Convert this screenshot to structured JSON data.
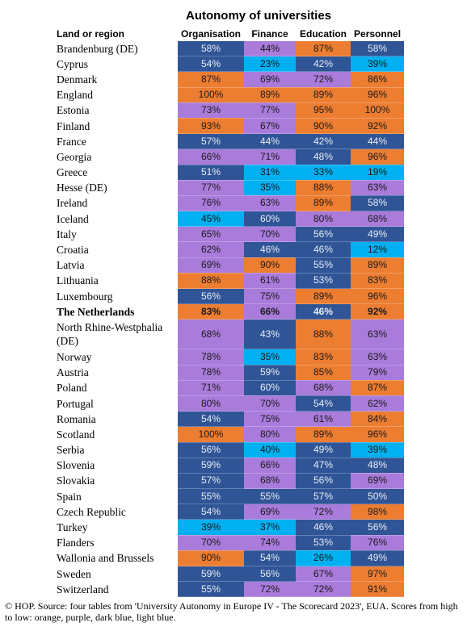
{
  "title": "Autonomy of universities",
  "table": {
    "header": [
      "Land or region",
      "Organisation",
      "Finance",
      "Education",
      "Personnel"
    ],
    "rows": [
      {
        "label": "Brandenburg (DE)",
        "cells": [
          "58%",
          "44%",
          "87%",
          "58%"
        ],
        "colors": [
          "#2f5597",
          "#a97bdb",
          "#ed7d31",
          "#2f5597"
        ]
      },
      {
        "label": "Cyprus",
        "cells": [
          "54%",
          "23%",
          "42%",
          "39%"
        ],
        "colors": [
          "#2f5597",
          "#00b0f0",
          "#2f5597",
          "#00b0f0"
        ]
      },
      {
        "label": "Denmark",
        "cells": [
          "87%",
          "69%",
          "72%",
          "86%"
        ],
        "colors": [
          "#ed7d31",
          "#a97bdb",
          "#a97bdb",
          "#ed7d31"
        ]
      },
      {
        "label": "England",
        "cells": [
          "100%",
          "89%",
          "89%",
          "96%"
        ],
        "colors": [
          "#ed7d31",
          "#ed7d31",
          "#ed7d31",
          "#ed7d31"
        ]
      },
      {
        "label": "Estonia",
        "cells": [
          "73%",
          "77%",
          "95%",
          "100%"
        ],
        "colors": [
          "#a97bdb",
          "#a97bdb",
          "#ed7d31",
          "#ed7d31"
        ]
      },
      {
        "label": "Finland",
        "cells": [
          "93%",
          "67%",
          "90%",
          "92%"
        ],
        "colors": [
          "#ed7d31",
          "#a97bdb",
          "#ed7d31",
          "#ed7d31"
        ]
      },
      {
        "label": "France",
        "cells": [
          "57%",
          "44%",
          "42%",
          "44%"
        ],
        "colors": [
          "#2f5597",
          "#2f5597",
          "#2f5597",
          "#2f5597"
        ]
      },
      {
        "label": "Georgia",
        "cells": [
          "66%",
          "71%",
          "48%",
          "96%"
        ],
        "colors": [
          "#a97bdb",
          "#a97bdb",
          "#2f5597",
          "#ed7d31"
        ]
      },
      {
        "label": "Greece",
        "cells": [
          "51%",
          "31%",
          "33%",
          "19%"
        ],
        "colors": [
          "#2f5597",
          "#00b0f0",
          "#00b0f0",
          "#00b0f0"
        ]
      },
      {
        "label": "Hesse (DE)",
        "cells": [
          "77%",
          "35%",
          "88%",
          "63%"
        ],
        "colors": [
          "#a97bdb",
          "#00b0f0",
          "#ed7d31",
          "#a97bdb"
        ]
      },
      {
        "label": "Ireland",
        "cells": [
          "76%",
          "63%",
          "89%",
          "58%"
        ],
        "colors": [
          "#a97bdb",
          "#a97bdb",
          "#ed7d31",
          "#2f5597"
        ]
      },
      {
        "label": "Iceland",
        "cells": [
          "45%",
          "60%",
          "80%",
          "68%"
        ],
        "colors": [
          "#00b0f0",
          "#2f5597",
          "#a97bdb",
          "#a97bdb"
        ]
      },
      {
        "label": "Italy",
        "cells": [
          "65%",
          "70%",
          "56%",
          "49%"
        ],
        "colors": [
          "#a97bdb",
          "#a97bdb",
          "#2f5597",
          "#2f5597"
        ]
      },
      {
        "label": "Croatia",
        "cells": [
          "62%",
          "46%",
          "46%",
          "12%"
        ],
        "colors": [
          "#a97bdb",
          "#2f5597",
          "#2f5597",
          "#00b0f0"
        ]
      },
      {
        "label": "Latvia",
        "cells": [
          "69%",
          "90%",
          "55%",
          "89%"
        ],
        "colors": [
          "#a97bdb",
          "#ed7d31",
          "#2f5597",
          "#ed7d31"
        ]
      },
      {
        "label": "Lithuania",
        "cells": [
          "88%",
          "61%",
          "53%",
          "83%"
        ],
        "colors": [
          "#ed7d31",
          "#a97bdb",
          "#2f5597",
          "#ed7d31"
        ]
      },
      {
        "label": "Luxembourg",
        "cells": [
          "56%",
          "75%",
          "89%",
          "96%"
        ],
        "colors": [
          "#2f5597",
          "#a97bdb",
          "#ed7d31",
          "#ed7d31"
        ]
      },
      {
        "label": "The Netherlands",
        "cells": [
          "83%",
          "66%",
          "46%",
          "92%"
        ],
        "colors": [
          "#ed7d31",
          "#a97bdb",
          "#2f5597",
          "#ed7d31"
        ],
        "bold": true
      },
      {
        "label": "North Rhine-Westphalia (DE)",
        "cells": [
          "68%",
          "43%",
          "88%",
          "63%"
        ],
        "colors": [
          "#a97bdb",
          "#2f5597",
          "#ed7d31",
          "#a97bdb"
        ]
      },
      {
        "label": "Norway",
        "cells": [
          "78%",
          "35%",
          "83%",
          "63%"
        ],
        "colors": [
          "#a97bdb",
          "#00b0f0",
          "#ed7d31",
          "#a97bdb"
        ]
      },
      {
        "label": "Austria",
        "cells": [
          "78%",
          "59%",
          "85%",
          "79%"
        ],
        "colors": [
          "#a97bdb",
          "#2f5597",
          "#ed7d31",
          "#a97bdb"
        ]
      },
      {
        "label": "Poland",
        "cells": [
          "71%",
          "60%",
          "68%",
          "87%"
        ],
        "colors": [
          "#a97bdb",
          "#2f5597",
          "#a97bdb",
          "#ed7d31"
        ]
      },
      {
        "label": "Portugal",
        "cells": [
          "80%",
          "70%",
          "54%",
          "62%"
        ],
        "colors": [
          "#a97bdb",
          "#a97bdb",
          "#2f5597",
          "#a97bdb"
        ]
      },
      {
        "label": "Romania",
        "cells": [
          "54%",
          "75%",
          "61%",
          "84%"
        ],
        "colors": [
          "#2f5597",
          "#a97bdb",
          "#a97bdb",
          "#ed7d31"
        ]
      },
      {
        "label": "Scotland",
        "cells": [
          "100%",
          "80%",
          "89%",
          "96%"
        ],
        "colors": [
          "#ed7d31",
          "#a97bdb",
          "#ed7d31",
          "#ed7d31"
        ]
      },
      {
        "label": "Serbia",
        "cells": [
          "56%",
          "40%",
          "49%",
          "39%"
        ],
        "colors": [
          "#2f5597",
          "#00b0f0",
          "#2f5597",
          "#00b0f0"
        ]
      },
      {
        "label": "Slovenia",
        "cells": [
          "59%",
          "66%",
          "47%",
          "48%"
        ],
        "colors": [
          "#2f5597",
          "#a97bdb",
          "#2f5597",
          "#2f5597"
        ]
      },
      {
        "label": "Slovakia",
        "cells": [
          "57%",
          "68%",
          "56%",
          "69%"
        ],
        "colors": [
          "#2f5597",
          "#a97bdb",
          "#2f5597",
          "#a97bdb"
        ]
      },
      {
        "label": "Spain",
        "cells": [
          "55%",
          "55%",
          "57%",
          "50%"
        ],
        "colors": [
          "#2f5597",
          "#2f5597",
          "#2f5597",
          "#2f5597"
        ]
      },
      {
        "label": "Czech Republic",
        "cells": [
          "54%",
          "69%",
          "72%",
          "98%"
        ],
        "colors": [
          "#2f5597",
          "#a97bdb",
          "#a97bdb",
          "#ed7d31"
        ]
      },
      {
        "label": "Turkey",
        "cells": [
          "39%",
          "37%",
          "46%",
          "56%"
        ],
        "colors": [
          "#00b0f0",
          "#00b0f0",
          "#2f5597",
          "#2f5597"
        ]
      },
      {
        "label": "Flanders",
        "cells": [
          "70%",
          "74%",
          "53%",
          "76%"
        ],
        "colors": [
          "#a97bdb",
          "#a97bdb",
          "#2f5597",
          "#a97bdb"
        ]
      },
      {
        "label": "Wallonia and Brussels",
        "cells": [
          "90%",
          "54%",
          "26%",
          "49%"
        ],
        "colors": [
          "#ed7d31",
          "#2f5597",
          "#00b0f0",
          "#2f5597"
        ]
      },
      {
        "label": "Sweden",
        "cells": [
          "59%",
          "56%",
          "67%",
          "97%"
        ],
        "colors": [
          "#2f5597",
          "#2f5597",
          "#a97bdb",
          "#ed7d31"
        ]
      },
      {
        "label": "Switzerland",
        "cells": [
          "55%",
          "72%",
          "72%",
          "91%"
        ],
        "colors": [
          "#2f5597",
          "#a97bdb",
          "#a97bdb",
          "#ed7d31"
        ]
      }
    ]
  },
  "footnote": "© HOP. Source: four tables from 'University Autonomy in Europe IV - The Scorecard 2023', EUA. Scores from high to low: orange, purple, dark blue, light blue."
}
